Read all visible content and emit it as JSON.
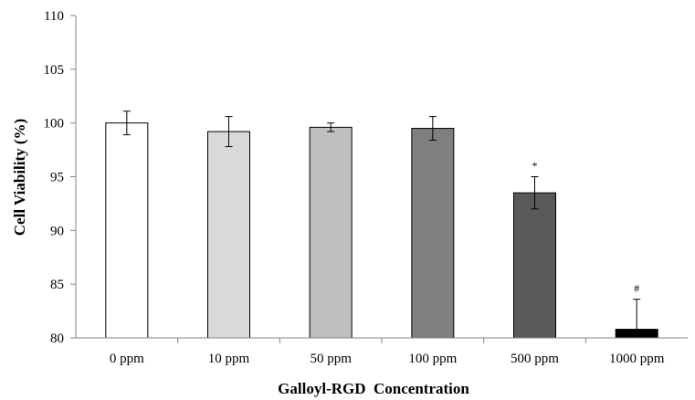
{
  "chart_data": {
    "type": "bar",
    "title": "",
    "xlabel": "Galloyl-RGD  Concentration",
    "ylabel": "Cell Viability (%)",
    "ylim": [
      80,
      110
    ],
    "yticks": [
      "80",
      "85",
      "90",
      "95",
      "100",
      "105",
      "110"
    ],
    "grid": false,
    "legend": "none",
    "categories": [
      "0 ppm",
      "10 ppm",
      "50 ppm",
      "100 ppm",
      "500 ppm",
      "1000 ppm"
    ],
    "values": [
      100.0,
      99.2,
      99.6,
      99.5,
      93.5,
      80.8
    ],
    "errors": [
      1.1,
      1.4,
      0.4,
      1.1,
      1.5,
      2.8
    ],
    "annotations": [
      "",
      "",
      "",
      "",
      "*",
      "#"
    ],
    "colors": [
      "#ffffff",
      "#d9d9d9",
      "#bfbfbf",
      "#7f7f7f",
      "#595959",
      "#000000"
    ]
  }
}
